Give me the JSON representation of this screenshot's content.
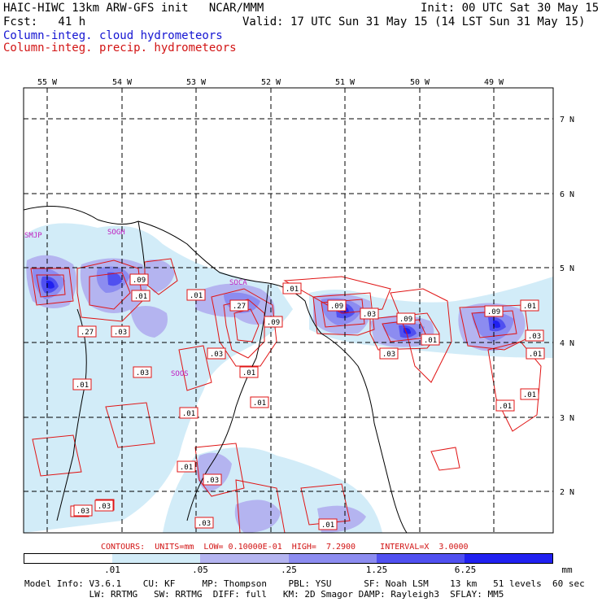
{
  "header": {
    "title_left": "HAIC-HIWC 13km ARW-GFS init   NCAR/MMM",
    "init": "Init: 00 UTC Sat 30 May 15",
    "fcst": "Fcst:   41 h",
    "valid": "Valid: 17 UTC Sun 31 May 15 (14 LST Sun 31 May 15)",
    "field_cloud": "Column-integ. cloud hydrometeors",
    "field_precip": "Column-integ. precip. hydrometeors"
  },
  "map": {
    "lon_labels": [
      "55 W",
      "54 W",
      "53 W",
      "52 W",
      "51 W",
      "50 W",
      "49 W"
    ],
    "lat_labels": [
      "7 N",
      "6 N",
      "5 N",
      "4 N",
      "3 N",
      "2 N"
    ],
    "stations": [
      "SMJP",
      "SOGH",
      "SOCA",
      "SOOS"
    ],
    "contour_labels": [
      ".09",
      ".01",
      ".01",
      ".27",
      ".03",
      ".27",
      ".09",
      ".01",
      ".01",
      ".09",
      ".03",
      ".09",
      ".01",
      ".03",
      ".09",
      ".01",
      ".03",
      ".01",
      ".01",
      ".03",
      ".01",
      ".01",
      ".01",
      ".01",
      ".03",
      ".01",
      ".03",
      ".01",
      ".03",
      ".01",
      ".01",
      ".03",
      ".03"
    ]
  },
  "contours_info": "CONTOURS:  UNITS=mm  LOW= 0.10000E-01  HIGH=  7.2900     INTERVAL=X  3.0000",
  "colorbar": {
    "labels": [
      ".01",
      ".05",
      ".25",
      "1.25",
      "6.25"
    ],
    "units": "mm",
    "colors": [
      "#ffffff",
      "#d2ecf8",
      "#b4b4f0",
      "#8c8cf0",
      "#5050f0",
      "#2020f0"
    ]
  },
  "footer": {
    "line1": "Model Info: V3.6.1    CU: KF     MP: Thompson    PBL: YSU      SF: Noah LSM    13 km   51 levels  60 sec",
    "line2": "            LW: RRTMG   SW: RRTMG  DIFF: full   KM: 2D Smagor DAMP: Rayleigh3  SFLAY: MM5"
  }
}
